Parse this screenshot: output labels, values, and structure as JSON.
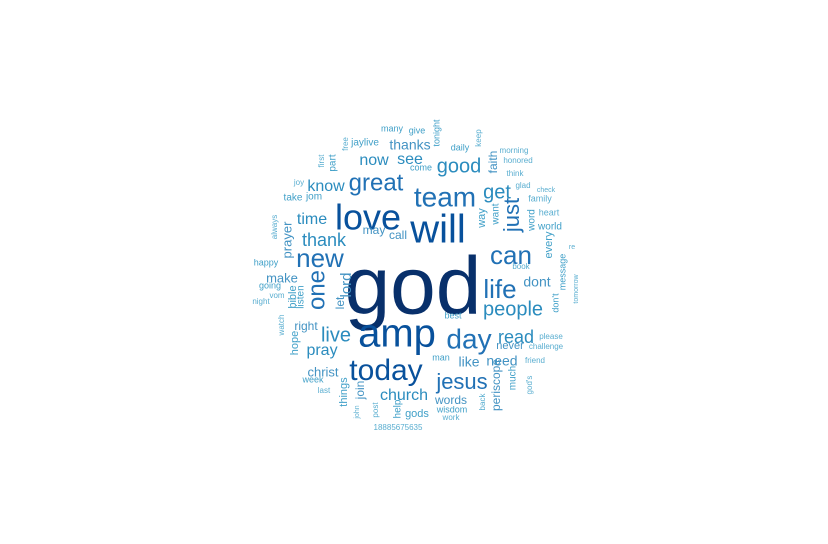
{
  "word_cloud": {
    "palette": {
      "navy": "#08306b",
      "dark_blue": "#08519c",
      "blue": "#2171b5",
      "mid_blue": "#2b8cbe",
      "teal": "#4393c3",
      "light_teal": "#41a0c8",
      "pale_teal": "#5aaed0"
    },
    "words": [
      {
        "text": "god",
        "weight": 100,
        "color": "#08306b"
      },
      {
        "text": "amp",
        "weight": 60,
        "color": "#08519c"
      },
      {
        "text": "will",
        "weight": 55,
        "color": "#08519c"
      },
      {
        "text": "love",
        "weight": 52,
        "color": "#08519c"
      },
      {
        "text": "today",
        "weight": 45,
        "color": "#08519c"
      },
      {
        "text": "team",
        "weight": 40,
        "color": "#2171b5"
      },
      {
        "text": "day",
        "weight": 40,
        "color": "#2171b5"
      },
      {
        "text": "life",
        "weight": 36,
        "color": "#2171b5"
      },
      {
        "text": "can",
        "weight": 36,
        "color": "#2171b5"
      },
      {
        "text": "new",
        "weight": 36,
        "color": "#2171b5"
      },
      {
        "text": "one",
        "weight": 34,
        "color": "#2171b5"
      },
      {
        "text": "great",
        "weight": 33,
        "color": "#2171b5"
      },
      {
        "text": "jesus",
        "weight": 33,
        "color": "#2171b5"
      },
      {
        "text": "just",
        "weight": 32,
        "color": "#2171b5"
      },
      {
        "text": "people",
        "weight": 30,
        "color": "#2b8cbe"
      },
      {
        "text": "live",
        "weight": 29,
        "color": "#2b8cbe"
      },
      {
        "text": "good",
        "weight": 28,
        "color": "#2b8cbe"
      },
      {
        "text": "get",
        "weight": 27,
        "color": "#2b8cbe"
      },
      {
        "text": "read",
        "weight": 26,
        "color": "#2b8cbe"
      },
      {
        "text": "thank",
        "weight": 26,
        "color": "#2b8cbe"
      },
      {
        "text": "church",
        "weight": 25,
        "color": "#2b8cbe"
      },
      {
        "text": "pray",
        "weight": 25,
        "color": "#2b8cbe"
      },
      {
        "text": "know",
        "weight": 24,
        "color": "#2b8cbe"
      },
      {
        "text": "time",
        "weight": 24,
        "color": "#2b8cbe"
      },
      {
        "text": "now",
        "weight": 23,
        "color": "#2b8cbe"
      },
      {
        "text": "see",
        "weight": 23,
        "color": "#2b8cbe"
      },
      {
        "text": "dont",
        "weight": 22,
        "color": "#4393c3"
      },
      {
        "text": "lord",
        "weight": 22,
        "color": "#4393c3"
      },
      {
        "text": "like",
        "weight": 21,
        "color": "#4393c3"
      },
      {
        "text": "need",
        "weight": 21,
        "color": "#4393c3"
      },
      {
        "text": "thanks",
        "weight": 20,
        "color": "#4393c3"
      },
      {
        "text": "make",
        "weight": 19,
        "color": "#4393c3"
      },
      {
        "text": "christ",
        "weight": 18,
        "color": "#4393c3"
      },
      {
        "text": "prayer",
        "weight": 18,
        "color": "#4393c3"
      },
      {
        "text": "right",
        "weight": 17,
        "color": "#4393c3"
      },
      {
        "text": "call",
        "weight": 17,
        "color": "#4393c3"
      },
      {
        "text": "join",
        "weight": 17,
        "color": "#4393c3"
      },
      {
        "text": "words",
        "weight": 17,
        "color": "#4393c3"
      },
      {
        "text": "periscope",
        "weight": 17,
        "color": "#4393c3"
      },
      {
        "text": "faith",
        "weight": 16,
        "color": "#4393c3"
      },
      {
        "text": "may",
        "weight": 16,
        "color": "#4393c3"
      },
      {
        "text": "never",
        "weight": 16,
        "color": "#4393c3"
      },
      {
        "text": "let",
        "weight": 16,
        "color": "#4393c3"
      },
      {
        "text": "hope",
        "weight": 15,
        "color": "#41a0c8"
      },
      {
        "text": "things",
        "weight": 15,
        "color": "#41a0c8"
      },
      {
        "text": "gods",
        "weight": 15,
        "color": "#41a0c8"
      },
      {
        "text": "bible",
        "weight": 15,
        "color": "#41a0c8"
      },
      {
        "text": "listen",
        "weight": 14,
        "color": "#41a0c8"
      },
      {
        "text": "way",
        "weight": 14,
        "color": "#41a0c8"
      },
      {
        "text": "every",
        "weight": 14,
        "color": "#41a0c8"
      },
      {
        "text": "much",
        "weight": 14,
        "color": "#41a0c8"
      },
      {
        "text": "help",
        "weight": 14,
        "color": "#41a0c8"
      },
      {
        "text": "want",
        "weight": 14,
        "color": "#41a0c8"
      },
      {
        "text": "word",
        "weight": 14,
        "color": "#41a0c8"
      },
      {
        "text": "jom",
        "weight": 13,
        "color": "#41a0c8"
      },
      {
        "text": "jaylive",
        "weight": 13,
        "color": "#41a0c8"
      },
      {
        "text": "part",
        "weight": 13,
        "color": "#41a0c8"
      },
      {
        "text": "world",
        "weight": 13,
        "color": "#41a0c8"
      },
      {
        "text": "message",
        "weight": 13,
        "color": "#41a0c8"
      },
      {
        "text": "don't",
        "weight": 13,
        "color": "#41a0c8"
      },
      {
        "text": "tonight",
        "weight": 13,
        "color": "#41a0c8"
      },
      {
        "text": "daily",
        "weight": 13,
        "color": "#41a0c8"
      },
      {
        "text": "take",
        "weight": 13,
        "color": "#41a0c8"
      },
      {
        "text": "going",
        "weight": 12,
        "color": "#41a0c8"
      },
      {
        "text": "happy",
        "weight": 12,
        "color": "#41a0c8"
      },
      {
        "text": "wisdom",
        "weight": 12,
        "color": "#41a0c8"
      },
      {
        "text": "week",
        "weight": 12,
        "color": "#41a0c8"
      },
      {
        "text": "give",
        "weight": 12,
        "color": "#41a0c8"
      },
      {
        "text": "many",
        "weight": 12,
        "color": "#41a0c8"
      },
      {
        "text": "come",
        "weight": 12,
        "color": "#41a0c8"
      },
      {
        "text": "man",
        "weight": 12,
        "color": "#41a0c8"
      },
      {
        "text": "best",
        "weight": 12,
        "color": "#41a0c8"
      },
      {
        "text": "back",
        "weight": 11,
        "color": "#5aaed0"
      },
      {
        "text": "family",
        "weight": 11,
        "color": "#5aaed0"
      },
      {
        "text": "heart",
        "weight": 11,
        "color": "#5aaed0"
      },
      {
        "text": "morning",
        "weight": 11,
        "color": "#5aaed0"
      },
      {
        "text": "honored",
        "weight": 11,
        "color": "#5aaed0"
      },
      {
        "text": "think",
        "weight": 11,
        "color": "#5aaed0"
      },
      {
        "text": "glad",
        "weight": 11,
        "color": "#5aaed0"
      },
      {
        "text": "check",
        "weight": 11,
        "color": "#5aaed0"
      },
      {
        "text": "keep",
        "weight": 11,
        "color": "#5aaed0"
      },
      {
        "text": "first",
        "weight": 11,
        "color": "#5aaed0"
      },
      {
        "text": "free",
        "weight": 11,
        "color": "#5aaed0"
      },
      {
        "text": "joy",
        "weight": 11,
        "color": "#5aaed0"
      },
      {
        "text": "always",
        "weight": 11,
        "color": "#5aaed0"
      },
      {
        "text": "night",
        "weight": 11,
        "color": "#5aaed0"
      },
      {
        "text": "vom",
        "weight": 11,
        "color": "#5aaed0"
      },
      {
        "text": "watch",
        "weight": 11,
        "color": "#5aaed0"
      },
      {
        "text": "last",
        "weight": 11,
        "color": "#5aaed0"
      },
      {
        "text": "john",
        "weight": 10,
        "color": "#5aaed0"
      },
      {
        "text": "post",
        "weight": 10,
        "color": "#5aaed0"
      },
      {
        "text": "18885675635",
        "weight": 10,
        "color": "#5aaed0"
      },
      {
        "text": "work",
        "weight": 10,
        "color": "#5aaed0"
      },
      {
        "text": "please",
        "weight": 10,
        "color": "#5aaed0"
      },
      {
        "text": "challenge",
        "weight": 10,
        "color": "#5aaed0"
      },
      {
        "text": "friend",
        "weight": 10,
        "color": "#5aaed0"
      },
      {
        "text": "god's",
        "weight": 10,
        "color": "#5aaed0"
      },
      {
        "text": "book",
        "weight": 10,
        "color": "#5aaed0"
      },
      {
        "text": "tomorrow",
        "weight": 10,
        "color": "#5aaed0"
      },
      {
        "text": "re",
        "weight": 10,
        "color": "#5aaed0"
      }
    ]
  }
}
